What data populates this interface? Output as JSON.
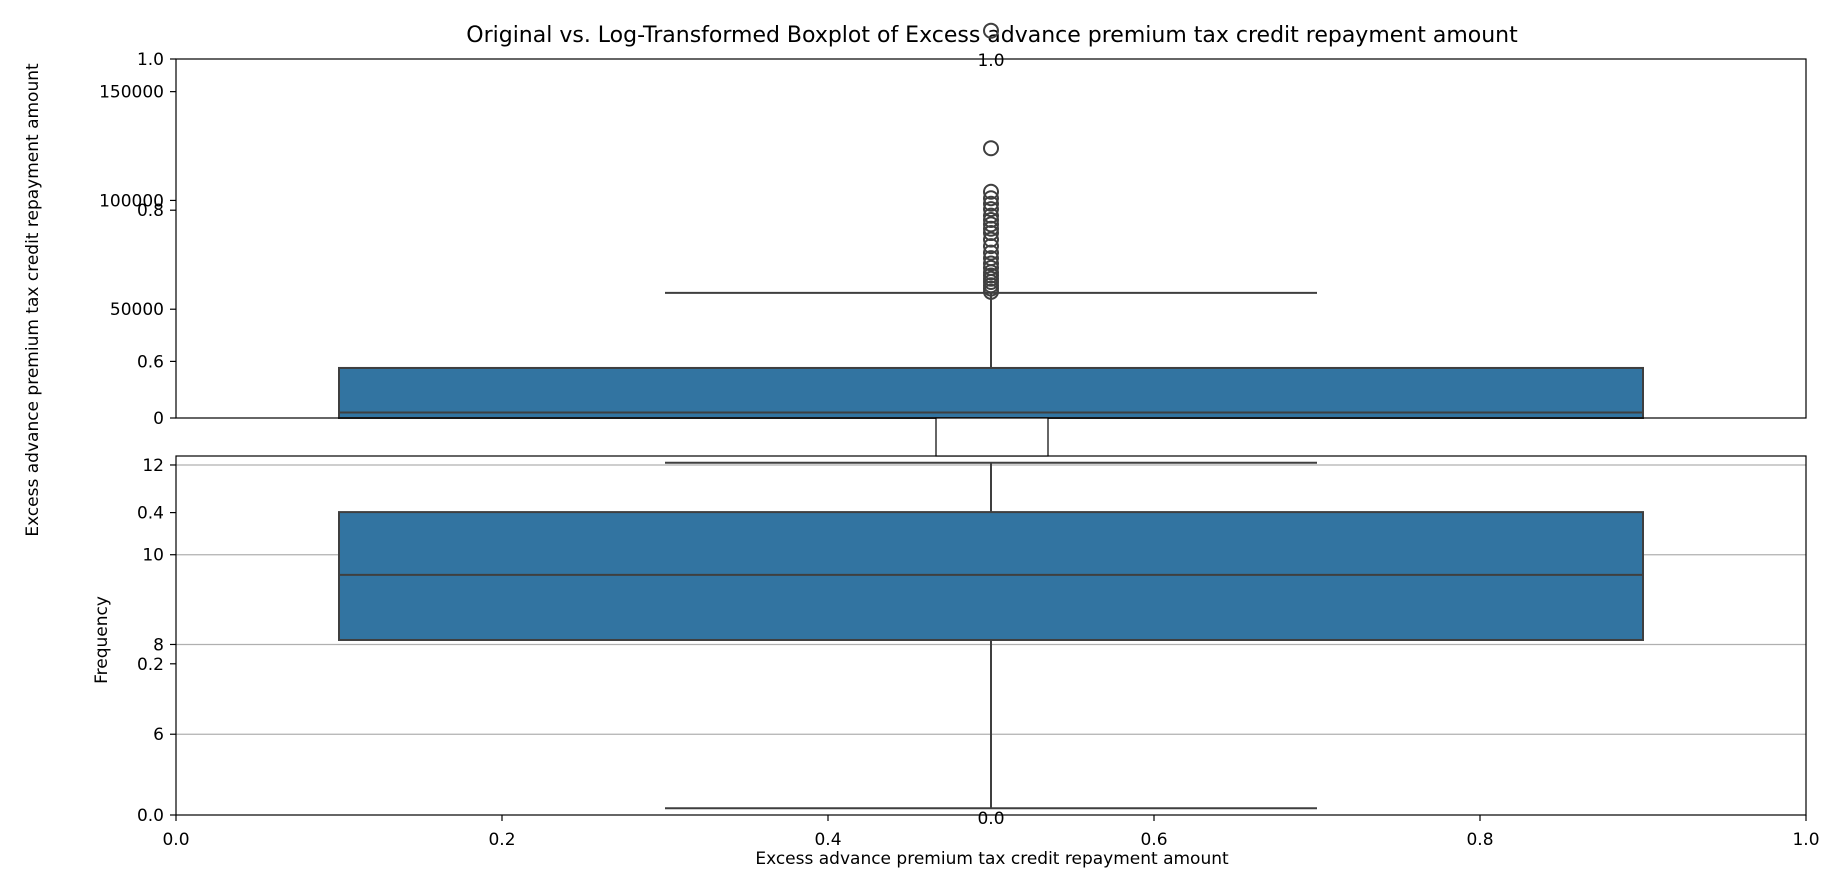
{
  "chart_data": {
    "title": "Original vs. Log-Transformed Boxplot of Excess advance premium tax credit repayment amount",
    "underlying_axes": {
      "xlabel": "Excess advance premium tax credit repayment amount",
      "ylabel": "Frequency",
      "x_ticks": [
        "0.0",
        "0.2",
        "0.4",
        "0.6",
        "0.8",
        "1.0"
      ],
      "y_ticks": [
        "0.0",
        "0.2",
        "0.4",
        "0.6",
        "0.8",
        "1.0"
      ]
    },
    "boxplots": [
      {
        "type": "box",
        "panel": "original",
        "ylabel": "Excess advance premium tax credit repayment amount",
        "ylim": [
          0,
          165000
        ],
        "y_ticks": [
          0,
          50000,
          100000,
          150000
        ],
        "top_tick_label": "1.0",
        "whisker_low": 0,
        "q1": 0,
        "median": 2500,
        "q3": 23000,
        "whisker_high": 57500,
        "outliers": [
          58000,
          59500,
          61000,
          62500,
          64000,
          65500,
          67000,
          69000,
          71000,
          73500,
          76000,
          79000,
          82000,
          85000,
          87000,
          89000,
          91000,
          93000,
          96000,
          98500,
          101000,
          104000,
          124000,
          178000
        ],
        "color": "#3274a1"
      },
      {
        "type": "box",
        "panel": "log-transformed",
        "ylim": [
          4.2,
          12.2
        ],
        "y_ticks": [
          6,
          8,
          10,
          12
        ],
        "grid": true,
        "bottom_tick_label": "0.0",
        "whisker_low": 4.35,
        "q1": 8.1,
        "median": 9.55,
        "q3": 10.95,
        "whisker_high": 12.05,
        "outliers": [],
        "color": "#3274a1"
      }
    ]
  }
}
